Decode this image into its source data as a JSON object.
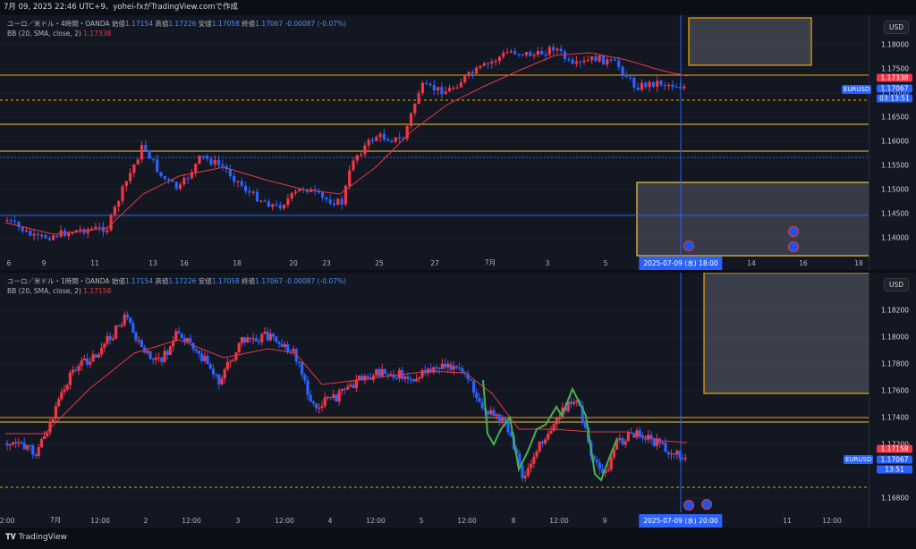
{
  "header": {
    "text": "7月 09, 2025 22:46 UTC+9、yohei-fxがTradingView.comで作成"
  },
  "footer": {
    "logo_text": "TradingView"
  },
  "colors": {
    "up": "#f23645",
    "down": "#2962ff",
    "bb": "#e53945",
    "level": "#f5c542",
    "orange": "#f7a600",
    "box_fill": "#5d606b",
    "green": "#4caf50"
  },
  "pane1": {
    "legend": {
      "title": "ユーロ／米ドル・4時間・OANDA",
      "o_label": "始値",
      "o": "1.17154",
      "h_label": "高値",
      "h": "1.17226",
      "l_label": "安値",
      "l": "1.17058",
      "c_label": "終値",
      "c": "1.17067",
      "chg": "-0.00087 (-0.07%)",
      "bb_label": "BB (20, SMA, close, 2)",
      "bb_value": "1.17338"
    },
    "currency": "USD",
    "yticks": [
      "1.18000",
      "1.17500",
      "1.17000",
      "1.16500",
      "1.16000",
      "1.15500",
      "1.15000",
      "1.14500",
      "1.14000"
    ],
    "price_labels": {
      "bb": "1.17338",
      "last": "1.17067",
      "countdown": "03:13:51",
      "symbol": "EURUSD"
    },
    "xticks": [
      "6",
      "9",
      "11",
      "13",
      "16",
      "18",
      "20",
      "23",
      "25",
      "27",
      "7月",
      "3",
      "5",
      "14",
      "16",
      "18"
    ],
    "cursor_date": "2025-07-09 (水)   18:00"
  },
  "pane2": {
    "legend": {
      "title": "ユーロ／米ドル・1時間・OANDA",
      "o_label": "始値",
      "o": "1.17154",
      "h_label": "高値",
      "h": "1.17226",
      "l_label": "安値",
      "l": "1.17058",
      "c_label": "終値",
      "c": "1.17067",
      "chg": "-0.00087 (-0.07%)",
      "bb_label": "BB (20, SMA, close, 2)",
      "bb_value": "1.17158"
    },
    "currency": "USD",
    "yticks": [
      "1.18200",
      "1.18000",
      "1.17800",
      "1.17600",
      "1.17400",
      "1.17200",
      "1.17000",
      "1.16800"
    ],
    "price_labels": {
      "bb": "1.17158",
      "last": "1.17067",
      "countdown": "13:51",
      "symbol": "EURUSD"
    },
    "xticks": [
      "2:00",
      "7月",
      "12:00",
      "2",
      "12:00",
      "3",
      "12:00",
      "4",
      "12:00",
      "5",
      "12:00",
      "8",
      "12:00",
      "9",
      "20:00",
      "11",
      "12:00"
    ],
    "cursor_date": "2025-07-09 (水)   20:00"
  }
}
